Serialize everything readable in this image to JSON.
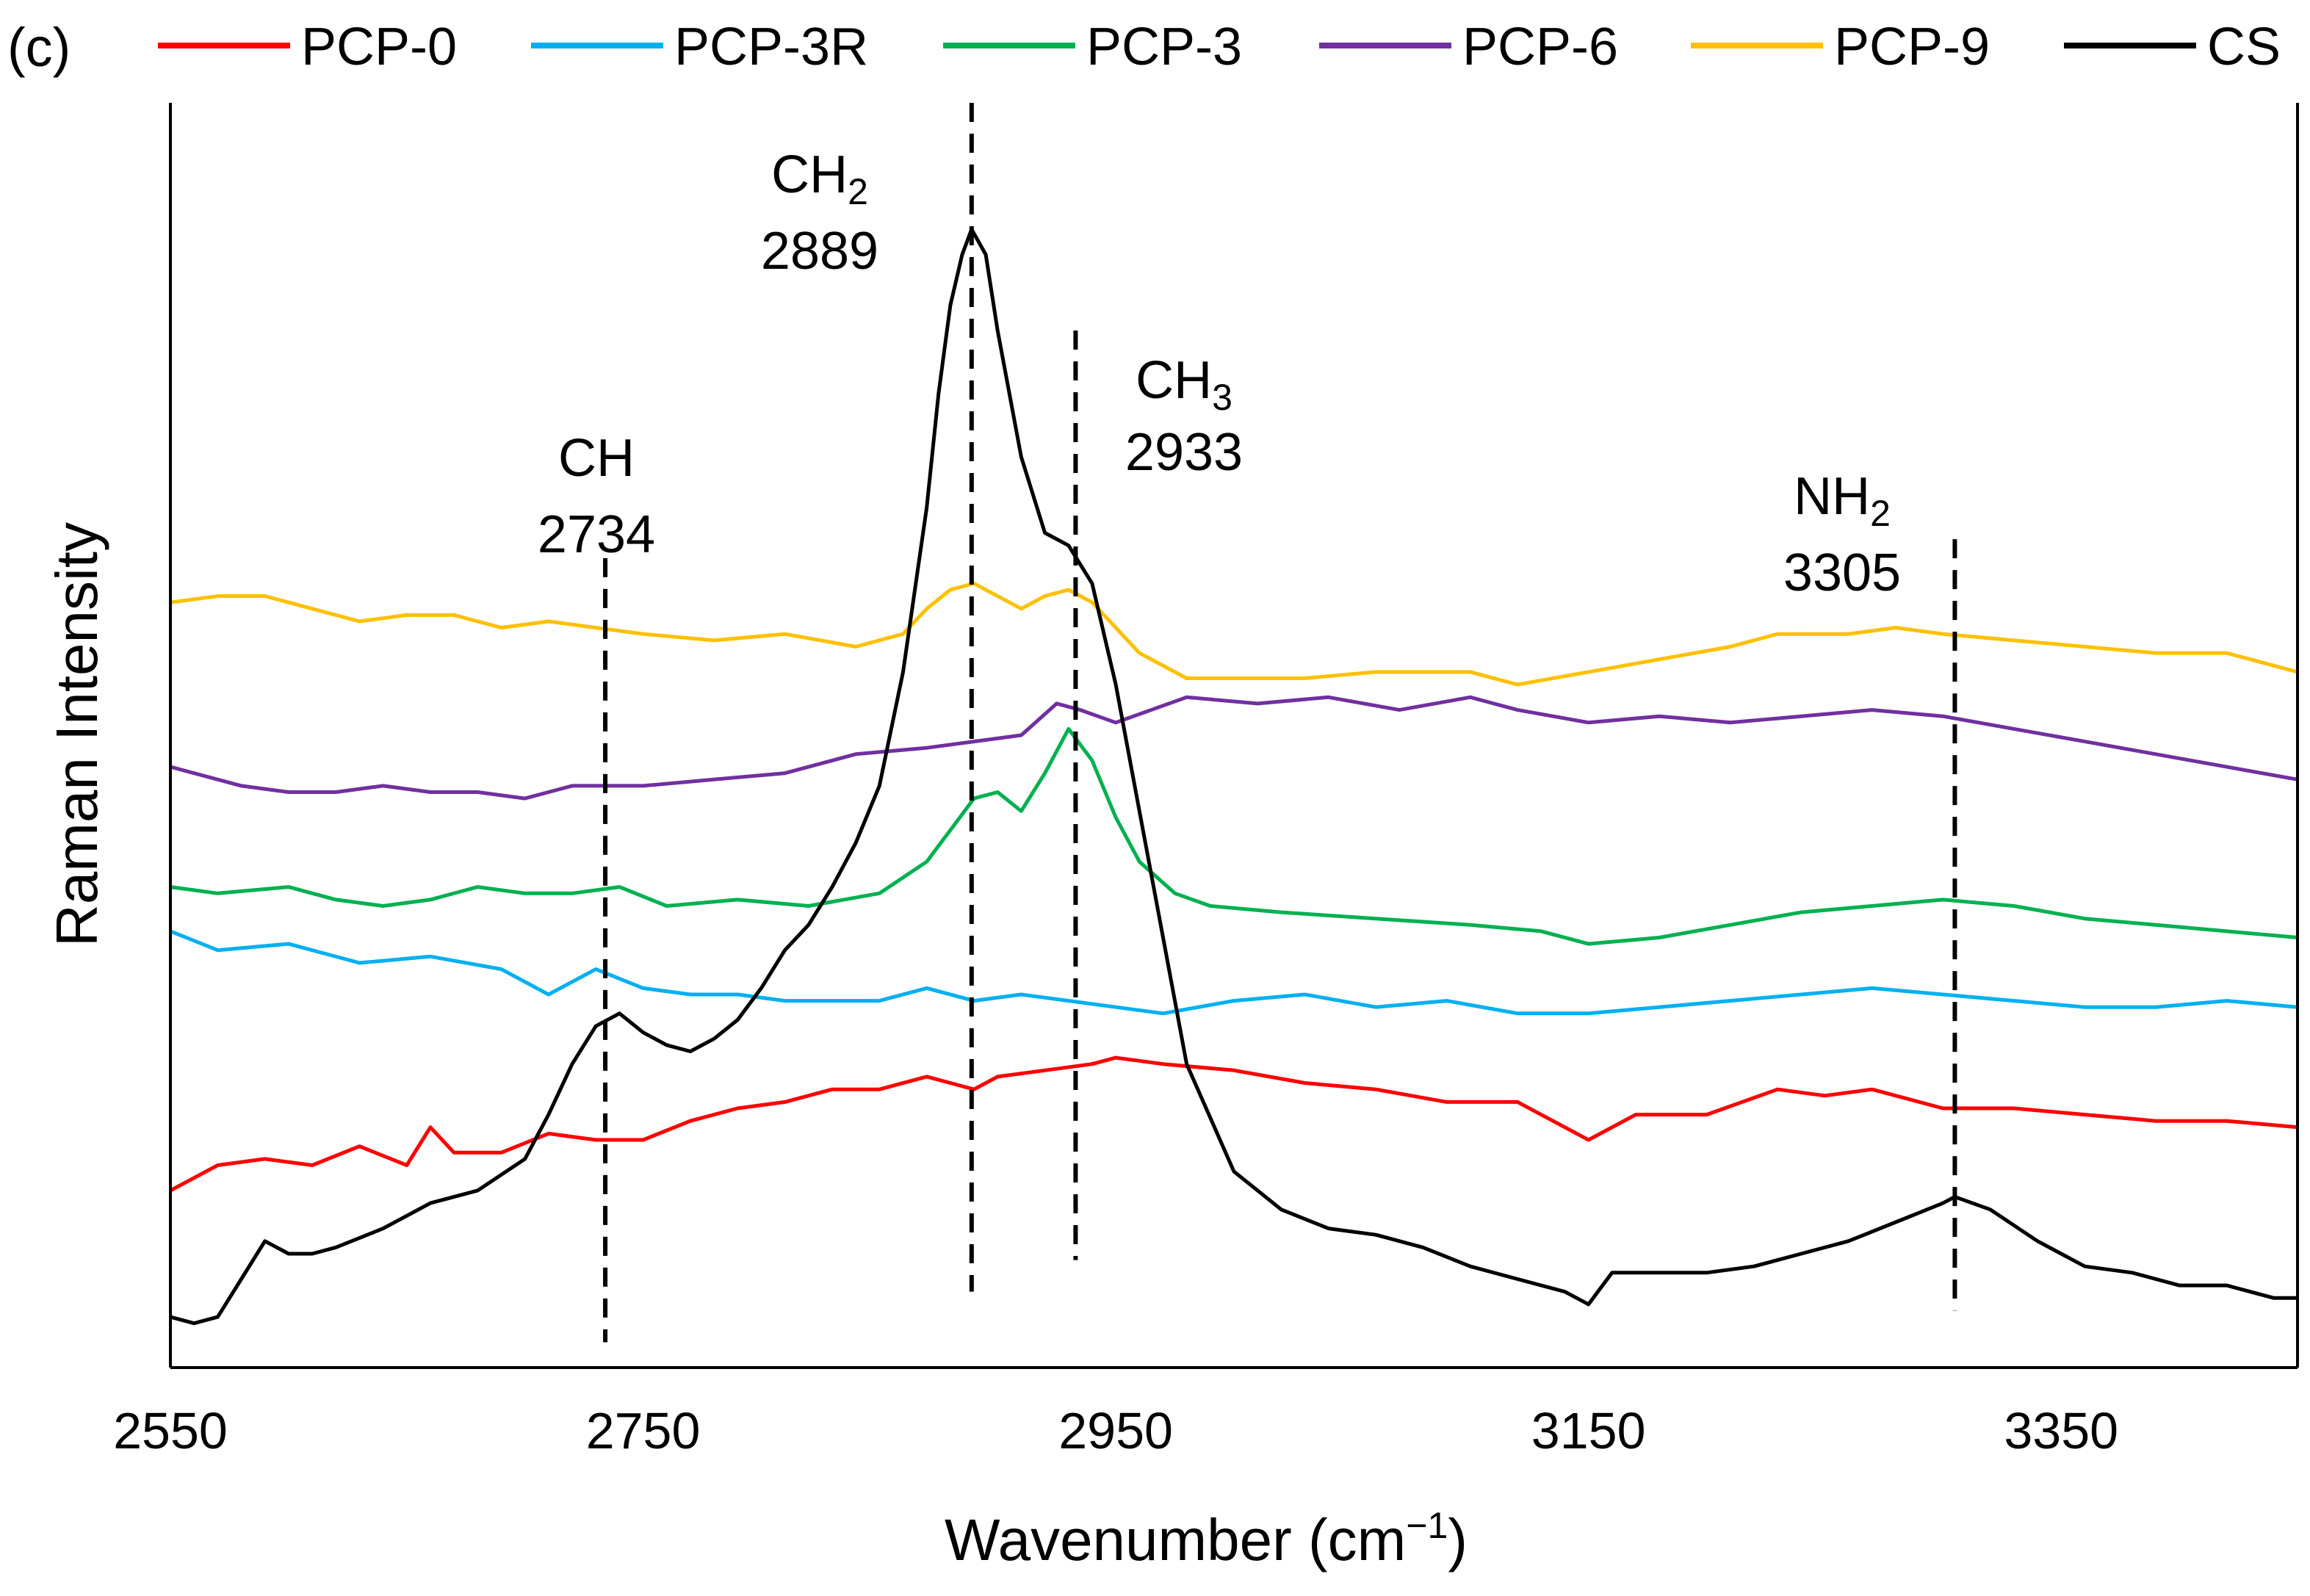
{
  "panel_label": "(c)",
  "chart_data": {
    "type": "line",
    "title": "",
    "xlabel": "Wavenumber (cm⁻¹)",
    "xlabel_main": "Wavenumber (cm",
    "xlabel_sup": "−1",
    "xlabel_close": ")",
    "ylabel": "Raman Intensity",
    "xlim": [
      2550,
      3450
    ],
    "ylim": [
      0,
      100
    ],
    "y_ticks_shown": false,
    "x_ticks": [
      2550,
      2750,
      2950,
      3150,
      3350
    ],
    "x_tick_labels": [
      "2550",
      "2750",
      "2950",
      "3150",
      "3350"
    ],
    "legend_position": "top",
    "series": [
      {
        "name": "PCP-0",
        "color": "#ff0000",
        "x": [
          2550,
          2570,
          2590,
          2610,
          2630,
          2650,
          2660,
          2670,
          2690,
          2710,
          2730,
          2750,
          2770,
          2790,
          2810,
          2830,
          2850,
          2870,
          2880,
          2890,
          2900,
          2920,
          2940,
          2950,
          2970,
          3000,
          3030,
          3060,
          3090,
          3120,
          3150,
          3170,
          3200,
          3230,
          3250,
          3270,
          3300,
          3330,
          3360,
          3390,
          3420,
          3450
        ],
        "y": [
          14,
          16,
          16.5,
          16,
          17.5,
          16,
          19,
          17,
          17,
          18.5,
          18,
          18,
          19.5,
          20.5,
          21,
          22,
          22,
          23,
          22.5,
          22,
          23,
          23.5,
          24,
          24.5,
          24,
          23.5,
          22.5,
          22,
          21,
          21,
          18,
          20,
          20,
          22,
          21.5,
          22,
          20.5,
          20.5,
          20,
          19.5,
          19.5,
          19
        ]
      },
      {
        "name": "PCP-3R",
        "color": "#00b0f0",
        "x": [
          2550,
          2570,
          2600,
          2630,
          2660,
          2690,
          2710,
          2730,
          2750,
          2770,
          2790,
          2810,
          2830,
          2850,
          2870,
          2890,
          2910,
          2930,
          2950,
          2970,
          3000,
          3030,
          3060,
          3090,
          3120,
          3150,
          3180,
          3210,
          3240,
          3270,
          3300,
          3330,
          3360,
          3390,
          3420,
          3450
        ],
        "y": [
          34.5,
          33,
          33.5,
          32,
          32.5,
          31.5,
          29.5,
          31.5,
          30,
          29.5,
          29.5,
          29,
          29,
          29,
          30,
          29,
          29.5,
          29,
          28.5,
          28,
          29,
          29.5,
          28.5,
          29,
          28,
          28,
          28.5,
          29,
          29.5,
          30,
          29.5,
          29,
          28.5,
          28.5,
          29,
          28.5
        ]
      },
      {
        "name": "PCP-3",
        "color": "#00b050",
        "x": [
          2550,
          2570,
          2600,
          2620,
          2640,
          2660,
          2680,
          2700,
          2720,
          2740,
          2760,
          2790,
          2820,
          2850,
          2870,
          2880,
          2890,
          2900,
          2910,
          2920,
          2930,
          2940,
          2950,
          2960,
          2975,
          2990,
          3020,
          3060,
          3100,
          3130,
          3150,
          3180,
          3210,
          3240,
          3270,
          3300,
          3330,
          3360,
          3390,
          3420,
          3450
        ],
        "y": [
          38,
          37.5,
          38,
          37,
          36.5,
          37,
          38,
          37.5,
          37.5,
          38,
          36.5,
          37,
          36.5,
          37.5,
          40,
          42.5,
          45,
          45.5,
          44,
          47,
          50.5,
          48,
          43.5,
          40,
          37.5,
          36.5,
          36,
          35.5,
          35,
          34.5,
          33.5,
          34,
          35,
          36,
          36.5,
          37,
          36.5,
          35.5,
          35,
          34.5,
          34
        ]
      },
      {
        "name": "PCP-6",
        "color": "#7030a0",
        "x": [
          2550,
          2560,
          2580,
          2600,
          2620,
          2640,
          2660,
          2680,
          2700,
          2720,
          2750,
          2780,
          2810,
          2840,
          2870,
          2890,
          2910,
          2925,
          2935,
          2950,
          2980,
          3010,
          3040,
          3070,
          3100,
          3120,
          3150,
          3180,
          3210,
          3240,
          3270,
          3300,
          3330,
          3360,
          3390,
          3420,
          3450
        ],
        "y": [
          47.5,
          47,
          46,
          45.5,
          45.5,
          46,
          45.5,
          45.5,
          45,
          46,
          46,
          46.5,
          47,
          48.5,
          49,
          49.5,
          50,
          52.5,
          52,
          51,
          53,
          52.5,
          53,
          52,
          53,
          52,
          51,
          51.5,
          51,
          51.5,
          52,
          51.5,
          50.5,
          49.5,
          48.5,
          47.5,
          46.5
        ]
      },
      {
        "name": "PCP-9",
        "color": "#ffc000",
        "x": [
          2550,
          2570,
          2590,
          2610,
          2630,
          2650,
          2670,
          2690,
          2710,
          2730,
          2750,
          2780,
          2810,
          2840,
          2860,
          2870,
          2880,
          2890,
          2900,
          2910,
          2920,
          2930,
          2940,
          2950,
          2960,
          2980,
          3000,
          3030,
          3060,
          3080,
          3100,
          3120,
          3150,
          3180,
          3210,
          3230,
          3260,
          3280,
          3300,
          3330,
          3360,
          3390,
          3420,
          3450
        ],
        "y": [
          60.5,
          61,
          61,
          60,
          59,
          59.5,
          59.5,
          58.5,
          59,
          58.5,
          58,
          57.5,
          58,
          57,
          58,
          60,
          61.5,
          62,
          61,
          60,
          61,
          61.5,
          60.5,
          58.5,
          56.5,
          54.5,
          54.5,
          54.5,
          55,
          55,
          55,
          54,
          55,
          56,
          57,
          58,
          58,
          58.5,
          58,
          57.5,
          57,
          56.5,
          56.5,
          55
        ]
      },
      {
        "name": "CS",
        "color": "#000000",
        "x": [
          2550,
          2560,
          2570,
          2580,
          2590,
          2600,
          2610,
          2620,
          2640,
          2660,
          2680,
          2700,
          2710,
          2720,
          2730,
          2740,
          2750,
          2760,
          2770,
          2780,
          2790,
          2800,
          2810,
          2820,
          2830,
          2840,
          2850,
          2860,
          2870,
          2875,
          2880,
          2885,
          2889,
          2895,
          2900,
          2910,
          2920,
          2930,
          2940,
          2950,
          2960,
          2970,
          2980,
          3000,
          3020,
          3040,
          3060,
          3080,
          3100,
          3120,
          3140,
          3150,
          3160,
          3180,
          3200,
          3220,
          3240,
          3260,
          3280,
          3300,
          3305,
          3320,
          3340,
          3360,
          3380,
          3400,
          3420,
          3440,
          3450
        ],
        "y": [
          4,
          3.5,
          4,
          7,
          10,
          9,
          9,
          9.5,
          11,
          13,
          14,
          16.5,
          20,
          24,
          27,
          28,
          26.5,
          25.5,
          25,
          26,
          27.5,
          30,
          33,
          35,
          38,
          41.5,
          46,
          55,
          68,
          77,
          84,
          88,
          90,
          88,
          82,
          72,
          66,
          65,
          62,
          54,
          44,
          34,
          24,
          15.5,
          12.5,
          11,
          10.5,
          9.5,
          8,
          7,
          6,
          5,
          7.5,
          7.5,
          7.5,
          8,
          9,
          10,
          11.5,
          13,
          13.5,
          12.5,
          10,
          8,
          7.5,
          6.5,
          6.5,
          5.5,
          5.5
        ]
      }
    ],
    "markers": [
      {
        "label": "CH",
        "subscript": "",
        "value": "2734",
        "x": 2734,
        "y_top": 64,
        "y_bottom": 2
      },
      {
        "label": "CH",
        "subscript": "2",
        "value": "2889",
        "x": 2889,
        "y_top": 100,
        "y_bottom": 6
      },
      {
        "label": "CH",
        "subscript": "3",
        "value": "2933",
        "x": 2933,
        "y_top": 82,
        "y_bottom": 8.5
      },
      {
        "label": "NH",
        "subscript": "2",
        "value": "3305",
        "x": 3305,
        "y_top": 65.5,
        "y_bottom": 4.5
      }
    ]
  }
}
